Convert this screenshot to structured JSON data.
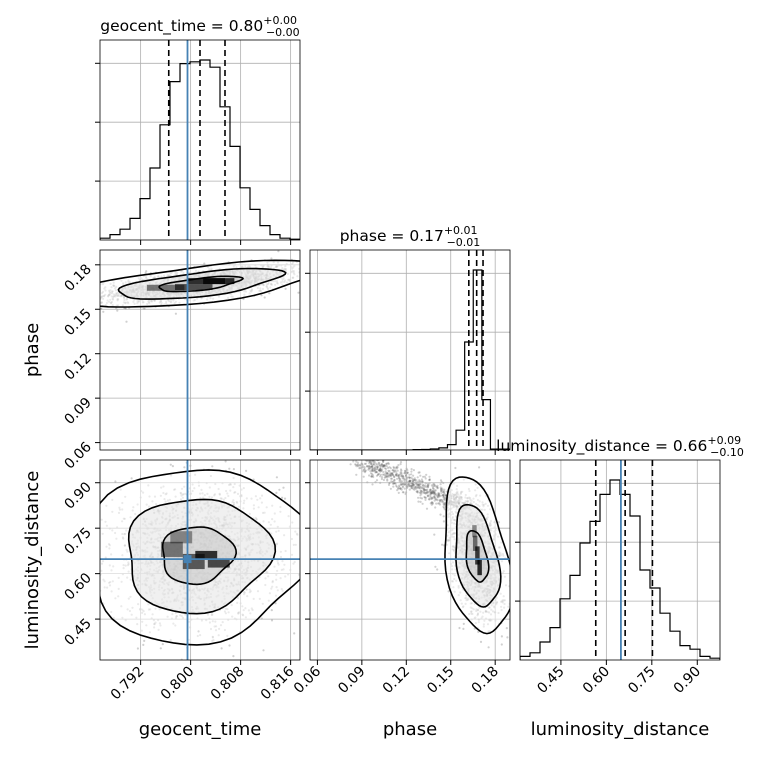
{
  "chart_data": {
    "type": "corner",
    "truth_color": "#4682b4",
    "params": [
      {
        "name": "geocent_time",
        "xlabel": "geocent_time",
        "ylabel": "",
        "range": [
          0.7855,
          0.8175
        ],
        "ticks": [
          "0.792",
          "0.800",
          "0.808",
          "0.816"
        ],
        "title": {
          "base": "geocent_time = 0.80",
          "plus": "+0.00",
          "minus": "−0.00"
        },
        "quantiles": [
          0.7965,
          0.8015,
          0.8055
        ],
        "truth": 0.7995,
        "hist": {
          "edges": [
            0.7855,
            0.7871,
            0.7887,
            0.7903,
            0.7919,
            0.7935,
            0.7951,
            0.7967,
            0.7983,
            0.7999,
            0.8015,
            0.8031,
            0.8047,
            0.8063,
            0.8079,
            0.8095,
            0.8111,
            0.8127,
            0.8143,
            0.8159,
            0.8175
          ],
          "counts": [
            1,
            3,
            6,
            12,
            23,
            40,
            64,
            88,
            98,
            99,
            100,
            96,
            74,
            52,
            29,
            17,
            8,
            3,
            1,
            0.4
          ]
        }
      },
      {
        "name": "phase",
        "xlabel": "phase",
        "ylabel": "phase",
        "range": [
          0.055,
          0.19
        ],
        "ticks": [
          "0.06",
          "0.09",
          "0.12",
          "0.15",
          "0.18"
        ],
        "title": {
          "base": "phase = 0.17",
          "plus": "+0.01",
          "minus": "−0.01"
        },
        "quantiles": [
          0.1622,
          0.1675,
          0.1718
        ],
        "truth": null,
        "hist": {
          "edges": [
            0.055,
            0.0608,
            0.0666,
            0.0724,
            0.0782,
            0.084,
            0.0898,
            0.0956,
            0.1014,
            0.1072,
            0.113,
            0.1188,
            0.1246,
            0.1304,
            0.1362,
            0.142,
            0.1478,
            0.1536,
            0.1594,
            0.1652,
            0.171,
            0.1768,
            0.19
          ],
          "counts": [
            0,
            0,
            0,
            0,
            0,
            0,
            0,
            0,
            0,
            0,
            0,
            0,
            0.2,
            0.3,
            0.6,
            1.2,
            3,
            11,
            60,
            100,
            28,
            0.5
          ]
        }
      },
      {
        "name": "luminosity_distance",
        "xlabel": "luminosity_distance",
        "ylabel": "luminosity_distance",
        "range": [
          0.315,
          0.975
        ],
        "ticks": [
          "0.45",
          "0.60",
          "0.75",
          "0.90"
        ],
        "title": {
          "base": "luminosity_distance = 0.66",
          "plus": "+0.09",
          "minus": "−0.10"
        },
        "quantiles": [
          0.565,
          0.662,
          0.752
        ],
        "truth": 0.648,
        "hist": {
          "edges": [
            0.315,
            0.348,
            0.381,
            0.414,
            0.447,
            0.48,
            0.513,
            0.546,
            0.579,
            0.612,
            0.645,
            0.678,
            0.711,
            0.744,
            0.777,
            0.81,
            0.843,
            0.876,
            0.909,
            0.942,
            0.975
          ],
          "counts": [
            2,
            4,
            10,
            18,
            34,
            47,
            65,
            77,
            92,
            100,
            92,
            80,
            50,
            40,
            26,
            16,
            8,
            6,
            2,
            1
          ]
        }
      }
    ],
    "pairs": [
      {
        "x": 0,
        "y": 1,
        "center": [
          0.8015,
          0.167
        ],
        "sd": [
          0.0066,
          0.0052
        ],
        "rho": 0.62,
        "cloud_n": 2200,
        "levels": [
          0.39,
          0.86,
          0.99
        ],
        "bins": [
          [
            0.796,
            0.1645,
            0.006,
            0.004,
            0.55
          ],
          [
            0.8005,
            0.165,
            0.006,
            0.004,
            0.75
          ],
          [
            0.8025,
            0.169,
            0.006,
            0.004,
            0.95
          ],
          [
            0.8045,
            0.169,
            0.005,
            0.004,
            1.0
          ]
        ]
      },
      {
        "x": 0,
        "y": 2,
        "center": [
          0.801,
          0.662
        ],
        "sd": [
          0.0058,
          0.095
        ],
        "rho": 0.05,
        "cloud_n": 2200,
        "levels": [
          0.39,
          0.86,
          0.99
        ],
        "bins": [
          [
            0.797,
            0.68,
            0.0035,
            0.05,
            0.55
          ],
          [
            0.8005,
            0.64,
            0.0035,
            0.05,
            0.7
          ],
          [
            0.8025,
            0.66,
            0.0035,
            0.03,
            0.95
          ],
          [
            0.8045,
            0.635,
            0.0035,
            0.03,
            0.8
          ],
          [
            0.7985,
            0.72,
            0.0035,
            0.04,
            0.45
          ]
        ]
      },
      {
        "x": 1,
        "y": 2,
        "center": [
          0.1675,
          0.655
        ],
        "sd": [
          0.0075,
          0.085
        ],
        "rho": -0.35,
        "cloud_n": 2200,
        "arc": true,
        "levels": [
          0.39,
          0.86,
          0.99
        ],
        "bins": [
          [
            0.1665,
            0.7,
            0.003,
            0.05,
            0.6
          ],
          [
            0.168,
            0.66,
            0.003,
            0.06,
            0.9
          ],
          [
            0.1695,
            0.62,
            0.003,
            0.05,
            1.0
          ],
          [
            0.166,
            0.74,
            0.003,
            0.04,
            0.45
          ]
        ]
      }
    ]
  }
}
